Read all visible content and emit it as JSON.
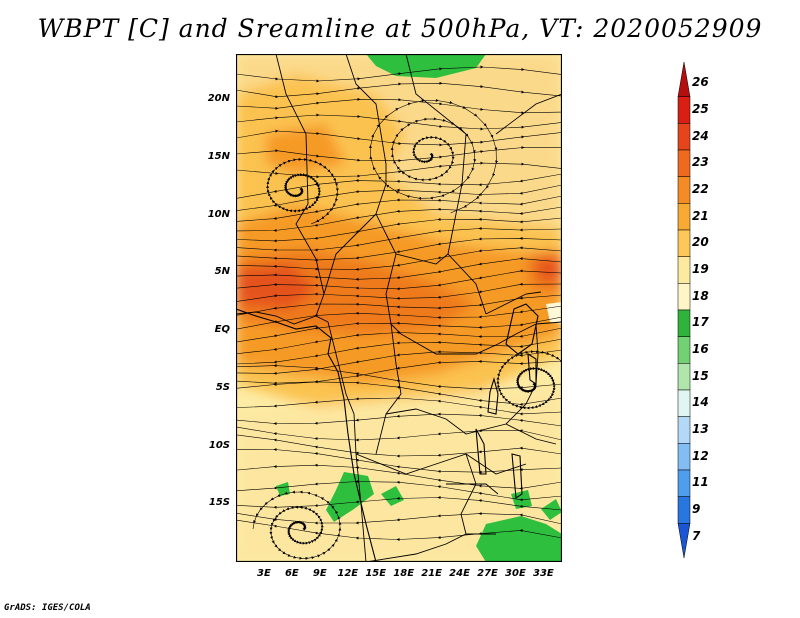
{
  "title": "WBPT [C] and Sreamline at 500hPa, VT: 2020052909",
  "footer": "GrADS: IGES/COLA",
  "map": {
    "lon_range": [
      0,
      35
    ],
    "lat_range": [
      -20,
      24
    ],
    "lat_ticks": [
      {
        "value": 20,
        "label": "20N"
      },
      {
        "value": 15,
        "label": "15N"
      },
      {
        "value": 10,
        "label": "10N"
      },
      {
        "value": 5,
        "label": "5N"
      },
      {
        "value": 0,
        "label": "EQ"
      },
      {
        "value": -5,
        "label": "5S"
      },
      {
        "value": -10,
        "label": "10S"
      },
      {
        "value": -15,
        "label": "15S"
      }
    ],
    "lon_ticks": [
      {
        "value": 3,
        "label": "3E"
      },
      {
        "value": 6,
        "label": "6E"
      },
      {
        "value": 9,
        "label": "9E"
      },
      {
        "value": 12,
        "label": "12E"
      },
      {
        "value": 15,
        "label": "15E"
      },
      {
        "value": 18,
        "label": "18E"
      },
      {
        "value": 21,
        "label": "21E"
      },
      {
        "value": 24,
        "label": "24E"
      },
      {
        "value": 27,
        "label": "27E"
      },
      {
        "value": 30,
        "label": "30E"
      },
      {
        "value": 33,
        "label": "33E"
      }
    ],
    "fill_colors": {
      "green": "#2fbf3f",
      "pale_yellow": "#fdeca5",
      "light_orange": "#fbc24f",
      "orange": "#f69a25",
      "dark_orange": "#ee7a1e",
      "red_orange": "#e5521c"
    }
  },
  "colorbar": {
    "labels": [
      "26",
      "25",
      "24",
      "23",
      "22",
      "21",
      "20",
      "19",
      "18",
      "17",
      "16",
      "15",
      "14",
      "13",
      "12",
      "11",
      "9",
      "7"
    ],
    "colors": [
      "#b50e0e",
      "#d91f14",
      "#e5451b",
      "#ee6a1f",
      "#f58b24",
      "#f8aa33",
      "#fbc859",
      "#fde9a0",
      "#fff5c6",
      "#2fb33b",
      "#72d172",
      "#b0e6ac",
      "#e0f6f3",
      "#b4d9f6",
      "#82bdf3",
      "#4f9ded",
      "#2a76e1",
      "#1a55d4"
    ]
  }
}
